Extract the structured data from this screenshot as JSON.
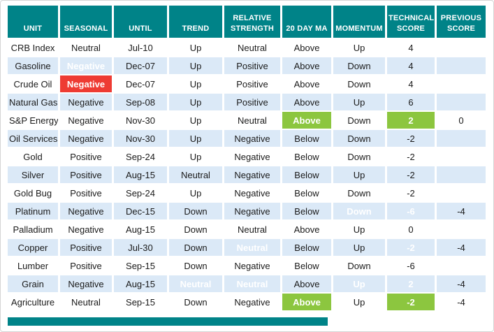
{
  "colors": {
    "header_teal": "#008388",
    "negative_red": "#ee3b33",
    "positive_green": "#8cc63f",
    "row_stripe_blue": "#dbe9f7",
    "cell_text": "#1a1a1a",
    "header_text": "#ffffff"
  },
  "chart_data": {
    "type": "table",
    "columns": [
      "UNIT",
      "SEASONAL",
      "UNTIL",
      "TREND",
      "RELATIVE\nSTRENGTH",
      "20 DAY MA",
      "MOMENTUM",
      "TECHNICAL\nSCORE",
      "PREVIOUS\nSCORE"
    ],
    "rows": [
      [
        "CRB Index",
        "Neutral",
        "Jul-10",
        "Up",
        "Neutral",
        "Above",
        "Up",
        "4",
        ""
      ],
      [
        "Gasoline",
        "Negative",
        "Dec-07",
        "Up",
        "Positive",
        "Above",
        "Down",
        "4",
        ""
      ],
      [
        "Crude Oil",
        "Negative",
        "Dec-07",
        "Up",
        "Positive",
        "Above",
        "Down",
        "4",
        ""
      ],
      [
        "Natural Gas",
        "Negative",
        "Sep-08",
        "Up",
        "Positive",
        "Above",
        "Up",
        "6",
        ""
      ],
      [
        "S&P Energy",
        "Negative",
        "Nov-30",
        "Up",
        "Neutral",
        "Above",
        "Down",
        "2",
        "0"
      ],
      [
        "Oil Services",
        "Negative",
        "Nov-30",
        "Up",
        "Negative",
        "Below",
        "Down",
        "-2",
        ""
      ],
      [
        "Gold",
        "Positive",
        "Sep-24",
        "Up",
        "Negative",
        "Below",
        "Down",
        "-2",
        ""
      ],
      [
        "Silver",
        "Positive",
        "Aug-15",
        "Neutral",
        "Negative",
        "Below",
        "Up",
        "-2",
        ""
      ],
      [
        "Gold Bug",
        "Positive",
        "Sep-24",
        "Up",
        "Negative",
        "Below",
        "Down",
        "-2",
        ""
      ],
      [
        "Platinum",
        "Negative",
        "Dec-15",
        "Down",
        "Negative",
        "Below",
        "Down",
        "-6",
        "-4"
      ],
      [
        "Palladium",
        "Negative",
        "Aug-15",
        "Down",
        "Neutral",
        "Above",
        "Up",
        "0",
        ""
      ],
      [
        "Copper",
        "Positive",
        "Jul-30",
        "Down",
        "Neutral",
        "Below",
        "Up",
        "-2",
        "-4"
      ],
      [
        "Lumber",
        "Positive",
        "Sep-15",
        "Down",
        "Negative",
        "Below",
        "Down",
        "-6",
        ""
      ],
      [
        "Grain",
        "Negative",
        "Aug-15",
        "Neutral",
        "Neutral",
        "Above",
        "Up",
        "2",
        "-4"
      ],
      [
        "Agriculture",
        "Neutral",
        "Sep-15",
        "Down",
        "Negative",
        "Above",
        "Up",
        "-2",
        "-4"
      ]
    ],
    "highlights": [
      {
        "row": 1,
        "col": 1,
        "color": "red"
      },
      {
        "row": 2,
        "col": 1,
        "color": "red"
      },
      {
        "row": 4,
        "col": 5,
        "color": "green"
      },
      {
        "row": 4,
        "col": 7,
        "color": "green"
      },
      {
        "row": 9,
        "col": 6,
        "color": "red"
      },
      {
        "row": 9,
        "col": 7,
        "color": "red"
      },
      {
        "row": 11,
        "col": 4,
        "color": "green"
      },
      {
        "row": 11,
        "col": 7,
        "color": "green"
      },
      {
        "row": 13,
        "col": 3,
        "color": "green"
      },
      {
        "row": 13,
        "col": 4,
        "color": "green"
      },
      {
        "row": 13,
        "col": 6,
        "color": "green"
      },
      {
        "row": 13,
        "col": 7,
        "color": "green"
      },
      {
        "row": 14,
        "col": 5,
        "color": "green"
      },
      {
        "row": 14,
        "col": 7,
        "color": "green"
      }
    ],
    "layout": {
      "stripe_pattern": "alternate rows starting white",
      "gridlines": "white separators between cells",
      "legend_position": "none"
    }
  }
}
